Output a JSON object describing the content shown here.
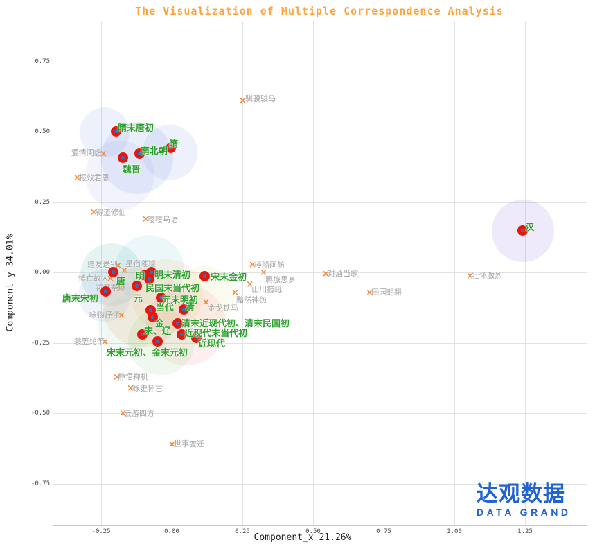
{
  "branding": {
    "logo_cn": "达观数据",
    "logo_en": "DATA GRAND",
    "color": "#2064d4"
  },
  "chart_data": {
    "type": "scatter",
    "title": "The Visualization of Multiple Correspondence Analysis",
    "title_color": "#ffa43b",
    "xlabel": "Component_x 21.26%",
    "ylabel": "Component_y 34.01%",
    "xlim": [
      -0.419,
      1.468
    ],
    "ylim": [
      -0.899,
      0.892
    ],
    "grid": true,
    "x_ticks": [
      {
        "value": -0.25,
        "label": "-0.25"
      },
      {
        "value": 0.0,
        "label": "0.00"
      },
      {
        "value": 0.25,
        "label": "0.25"
      },
      {
        "value": 0.5,
        "label": "0.50"
      },
      {
        "value": 0.75,
        "label": "0.75"
      },
      {
        "value": 1.0,
        "label": "1.00"
      },
      {
        "value": 1.25,
        "label": "1.25"
      }
    ],
    "y_ticks": [
      {
        "value": -0.75,
        "label": "-0.75"
      },
      {
        "value": -0.5,
        "label": "-0.50"
      },
      {
        "value": -0.25,
        "label": "-0.25"
      },
      {
        "value": 0.0,
        "label": "0.00"
      },
      {
        "value": 0.25,
        "label": "0.25"
      },
      {
        "value": 0.5,
        "label": "0.50"
      },
      {
        "value": 0.75,
        "label": "0.75"
      }
    ],
    "series": [
      {
        "name": "dynasty-eras",
        "marker": "dot",
        "dot_color": "#e8150d",
        "dot_center_color": "#3a6cb5",
        "label_color": "#2ba02b",
        "points": [
          {
            "label": "隋末唐初",
            "x": -0.196,
            "y": 0.5,
            "dx": 2,
            "dy": -16
          },
          {
            "label": "隋",
            "x": -0.002,
            "y": 0.441,
            "dx": -3,
            "dy": -17
          },
          {
            "label": "南北朝",
            "x": -0.113,
            "y": 0.421,
            "dx": 1,
            "dy": -15
          },
          {
            "label": "魏晋",
            "x": -0.172,
            "y": 0.406,
            "dx": -1,
            "dy": 6
          },
          {
            "label": "汉",
            "x": 1.243,
            "y": 0.148,
            "dx": 3,
            "dy": -16
          },
          {
            "label": "唐",
            "x": -0.206,
            "y": 0.0,
            "dx": 4,
            "dy": 2
          },
          {
            "label": "明",
            "x": -0.093,
            "y": -0.01,
            "dx": -14,
            "dy": -9
          },
          {
            "label": "明末清初",
            "x": -0.071,
            "y": 0.0,
            "dx": 4,
            "dy": -7
          },
          {
            "label": "民国末当代初",
            "x": -0.078,
            "y": -0.025,
            "dx": -6,
            "dy": 2
          },
          {
            "label": "元",
            "x": -0.123,
            "y": -0.049,
            "dx": -5,
            "dy": 7
          },
          {
            "label": "唐末宋初",
            "x": -0.233,
            "y": -0.069,
            "dx": -63,
            "dy": -1
          },
          {
            "label": "元末明初",
            "x": -0.037,
            "y": -0.091,
            "dx": 1,
            "dy": -8
          },
          {
            "label": "宋末金初",
            "x": 0.118,
            "y": -0.015,
            "dx": 8,
            "dy": -10
          },
          {
            "label": "当代",
            "x": -0.074,
            "y": -0.135,
            "dx": 7,
            "dy": -15
          },
          {
            "label": "金",
            "x": -0.066,
            "y": -0.16,
            "dx": 3,
            "dy": -2
          },
          {
            "label": "清",
            "x": 0.044,
            "y": -0.133,
            "dx": 2,
            "dy": -15
          },
          {
            "label": "清末近现代初、清末民国初",
            "x": 0.022,
            "y": -0.182,
            "dx": 5,
            "dy": -11
          },
          {
            "label": "宋、辽",
            "x": -0.103,
            "y": -0.222,
            "dx": 2,
            "dy": -16
          },
          {
            "label": "近现代末当代初",
            "x": 0.037,
            "y": -0.222,
            "dx": 3,
            "dy": -13
          },
          {
            "label": "近现代",
            "x": 0.088,
            "y": -0.234,
            "dx": 2,
            "dy": -3
          },
          {
            "label": "宋末元初、金末元初",
            "x": -0.049,
            "y": -0.246,
            "dx": -74,
            "dy": 5
          }
        ]
      },
      {
        "name": "poem-themes",
        "marker": "x",
        "marker_color": "#f5873a",
        "label_color": "#a3a3a3",
        "points": [
          {
            "label": "骐骥骏马",
            "x": 0.25,
            "y": 0.606,
            "dx": 4,
            "dy": -13
          },
          {
            "label": "爱情闺怨",
            "x": -0.243,
            "y": 0.416,
            "dx": -46,
            "dy": -12
          },
          {
            "label": "报效君恩",
            "x": -0.336,
            "y": 0.333,
            "dx": 3,
            "dy": -10
          },
          {
            "label": "得道修仙",
            "x": -0.277,
            "y": 0.209,
            "dx": 3,
            "dy": -10
          },
          {
            "label": "嘤嘤鸟语",
            "x": -0.093,
            "y": 0.185,
            "dx": 3,
            "dy": -10
          },
          {
            "label": "赠友送别",
            "x": -0.191,
            "y": 0.02,
            "dx": -44,
            "dy": -12
          },
          {
            "label": "星宿璀璨",
            "x": -0.169,
            "y": 0.002,
            "dx": 2,
            "dy": -20
          },
          {
            "label": "悼亡故人",
            "x": -0.218,
            "y": -0.027,
            "dx": -46,
            "dy": -11
          },
          {
            "label": "花开荼蘼",
            "x": -0.184,
            "y": -0.062,
            "dx": -35,
            "dy": -11
          },
          {
            "label": "咏物抒怀",
            "x": -0.179,
            "y": -0.158,
            "dx": -46,
            "dy": -11
          },
          {
            "label": "蓑笠纶竿",
            "x": -0.238,
            "y": -0.251,
            "dx": -44,
            "dy": -11
          },
          {
            "label": "静悟禅机",
            "x": -0.196,
            "y": -0.377,
            "dx": 2,
            "dy": -11
          },
          {
            "label": "咏史怀古",
            "x": -0.147,
            "y": -0.416,
            "dx": 3,
            "dy": -10
          },
          {
            "label": "云游四方",
            "x": -0.174,
            "y": -0.505,
            "dx": 2,
            "dy": -10
          },
          {
            "label": "世事变迁",
            "x": 0.0,
            "y": -0.616,
            "dx": 3,
            "dy": -11
          },
          {
            "label": "楼船画舫",
            "x": 0.284,
            "y": 0.022,
            "dx": 3,
            "dy": -10
          },
          {
            "label": "羁旅思乡",
            "x": 0.324,
            "y": -0.005,
            "dx": 3,
            "dy": 0
          },
          {
            "label": "山川巍峨",
            "x": 0.275,
            "y": -0.047,
            "dx": 3,
            "dy": -3
          },
          {
            "label": "黯然神伤",
            "x": 0.223,
            "y": -0.076,
            "dx": 2,
            "dy": 0
          },
          {
            "label": "金戈铁马",
            "x": 0.12,
            "y": -0.111,
            "dx": 3,
            "dy": -2
          },
          {
            "label": "对酒当歌",
            "x": 0.544,
            "y": -0.01,
            "dx": 3,
            "dy": -11
          },
          {
            "label": "田园躬耕",
            "x": 0.699,
            "y": -0.076,
            "dx": 3,
            "dy": -11
          },
          {
            "label": "壮怀激烈",
            "x": 1.054,
            "y": -0.017,
            "dx": 3,
            "dy": -11
          }
        ]
      }
    ],
    "clusters": [
      {
        "x": -0.238,
        "y": 0.498,
        "r": 36,
        "color": "rgba(130,155,230,0.14)"
      },
      {
        "x": -0.123,
        "y": 0.406,
        "r": 52,
        "color": "rgba(130,155,230,0.16)"
      },
      {
        "x": -0.007,
        "y": 0.426,
        "r": 40,
        "color": "rgba(130,155,230,0.14)"
      },
      {
        "x": -0.184,
        "y": 0.345,
        "r": 50,
        "color": "rgba(150,160,235,0.12)"
      },
      {
        "x": 1.243,
        "y": 0.148,
        "r": 45,
        "color": "rgba(160,140,230,0.18)"
      },
      {
        "x": -0.213,
        "y": -0.007,
        "r": 45,
        "color": "rgba(70,170,170,0.14)"
      },
      {
        "x": -0.078,
        "y": 0.01,
        "r": 50,
        "color": "rgba(110,195,205,0.13)"
      },
      {
        "x": -0.238,
        "y": -0.081,
        "r": 38,
        "color": "rgba(135,165,225,0.13)"
      },
      {
        "x": -0.103,
        "y": -0.123,
        "r": 58,
        "color": "rgba(240,150,70,0.14)"
      },
      {
        "x": -0.017,
        "y": -0.081,
        "r": 52,
        "color": "rgba(245,170,100,0.12)"
      },
      {
        "x": 0.051,
        "y": -0.187,
        "r": 58,
        "color": "rgba(240,120,120,0.12)"
      },
      {
        "x": -0.037,
        "y": -0.246,
        "r": 48,
        "color": "rgba(130,200,110,0.13)"
      },
      {
        "x": 0.118,
        "y": -0.081,
        "r": 42,
        "color": "rgba(220,210,110,0.11)"
      },
      {
        "x": -0.164,
        "y": -0.192,
        "r": 40,
        "color": "rgba(120,200,160,0.11)"
      }
    ]
  }
}
